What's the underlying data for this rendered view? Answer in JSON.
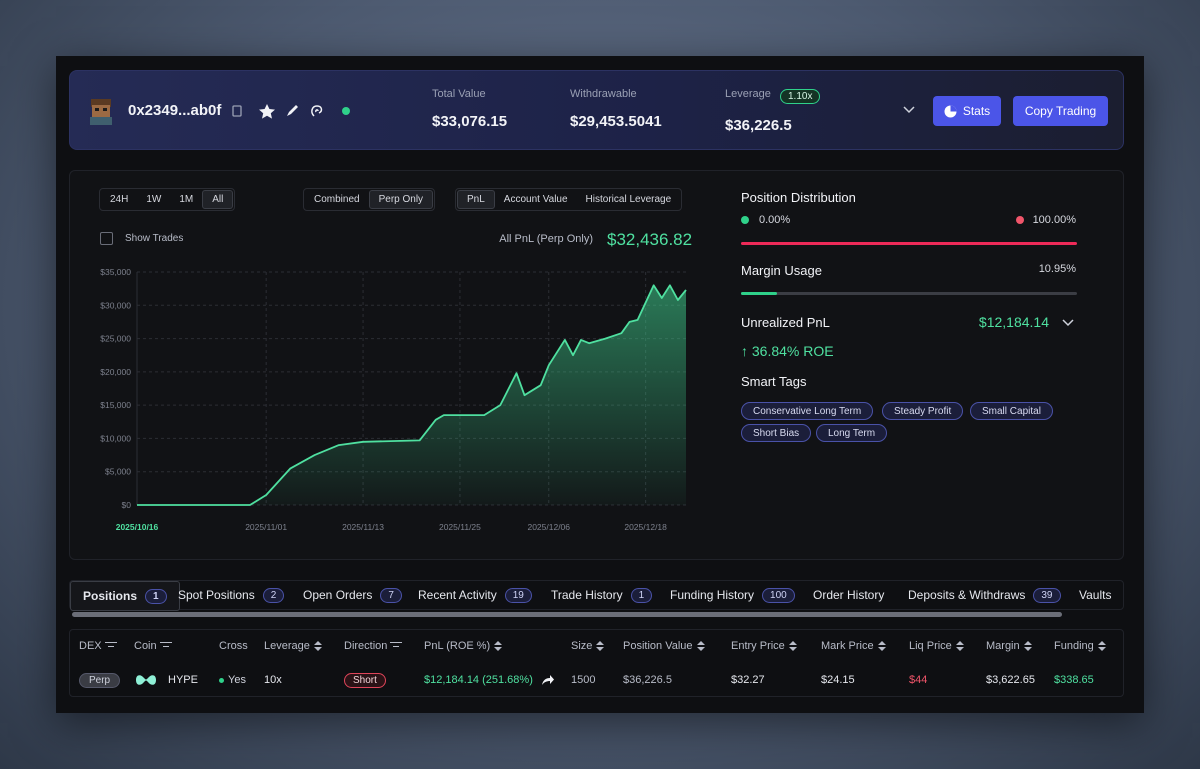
{
  "header": {
    "address": "0x2349...ab0f",
    "stats": [
      {
        "label": "Total Value",
        "value": "$33,076.15"
      },
      {
        "label": "Withdrawable",
        "value": "$29,453.5041"
      },
      {
        "label": "Leverage",
        "badge": "1.10x",
        "value": "$36,226.5"
      }
    ],
    "buttons": [
      "Stats",
      "Copy Trading"
    ]
  },
  "chart_panel": {
    "ranges": [
      "24H",
      "1W",
      "1M",
      "All"
    ],
    "modes": [
      "Combined",
      "Perp Only"
    ],
    "metrics": [
      "PnL",
      "Account Value",
      "Historical Leverage"
    ],
    "show_trades": "Show Trades",
    "pnl_label": "All PnL (Perp Only)",
    "pnl_value": "$32,436.82"
  },
  "chart_data": {
    "type": "area",
    "color": "#4fe0a0",
    "grid": true,
    "x": [
      "2025/10/16",
      "2025/10/30",
      "2025/11/01",
      "2025/11/04",
      "2025/11/07",
      "2025/11/10",
      "2025/11/13",
      "2025/11/20",
      "2025/11/22",
      "2025/11/23",
      "2025/11/28",
      "2025/11/30",
      "2025/12/02",
      "2025/12/03",
      "2025/12/05",
      "2025/12/06",
      "2025/12/08",
      "2025/12/09",
      "2025/12/10",
      "2025/12/11",
      "2025/12/13",
      "2025/12/15",
      "2025/12/16",
      "2025/12/17",
      "2025/12/19",
      "2025/12/20",
      "2025/12/21",
      "2025/12/22",
      "2025/12/23"
    ],
    "values": [
      0,
      0,
      1500,
      5500,
      7500,
      9000,
      9500,
      9700,
      12800,
      13500,
      13500,
      15000,
      19800,
      16500,
      18000,
      21000,
      24800,
      22500,
      24800,
      24300,
      25000,
      25800,
      27500,
      27800,
      33000,
      31100,
      33000,
      30800,
      32300
    ],
    "xlim": [
      "2025/10/16",
      "2025/12/23"
    ],
    "xticks": [
      "2025/10/16",
      "2025/11/01",
      "2025/11/13",
      "2025/11/25",
      "2025/12/06",
      "2025/12/18"
    ],
    "ylim": [
      0,
      35000
    ],
    "yticks": [
      {
        "value": 0,
        "label": "$0"
      },
      {
        "value": 5000,
        "label": "$5,000"
      },
      {
        "value": 10000,
        "label": "$10,000"
      },
      {
        "value": 15000,
        "label": "$15,000"
      },
      {
        "value": 20000,
        "label": "$20,000"
      },
      {
        "value": 25000,
        "label": "$25,000"
      },
      {
        "value": 30000,
        "label": "$30,000"
      },
      {
        "value": 35000,
        "label": "$35,000"
      }
    ]
  },
  "sidebar": {
    "position_distribution": {
      "title": "Position Distribution",
      "long": "0.00%",
      "short": "100.00%"
    },
    "margin_usage": {
      "title": "Margin Usage",
      "value": "10.95%"
    },
    "unrealized_pnl": {
      "title": "Unrealized PnL",
      "value": "$12,184.14",
      "roe": "↑ 36.84% ROE"
    },
    "smart_tags": {
      "title": "Smart Tags",
      "tags": [
        "Conservative Long Term",
        "Steady Profit",
        "Small Capital",
        "Short Bias",
        "Long Term"
      ]
    }
  },
  "tabs": [
    {
      "name": "Positions",
      "count": 1
    },
    {
      "name": "Spot Positions",
      "count": 2
    },
    {
      "name": "Open Orders",
      "count": 7
    },
    {
      "name": "Recent Activity",
      "count": 19
    },
    {
      "name": "Trade History",
      "count": 1
    },
    {
      "name": "Funding History",
      "count": 100
    },
    {
      "name": "Order History"
    },
    {
      "name": "Deposits & Withdraws",
      "count": 39
    },
    {
      "name": "Vaults"
    }
  ],
  "table": {
    "columns": [
      "DEX",
      "Coin",
      "Cross",
      "Leverage",
      "Direction",
      "PnL (ROE %)",
      "Size",
      "Position Value",
      "Entry Price",
      "Mark Price",
      "Liq Price",
      "Margin",
      "Funding"
    ],
    "rows": [
      [
        "Perp",
        "HYPE",
        "Yes",
        "10x",
        "Short",
        "$12,184.14 (251.68%)",
        "1500",
        "$36,226.5",
        "$32.27",
        "$24.15",
        "$44",
        "$3,622.65",
        "$338.65"
      ]
    ]
  }
}
